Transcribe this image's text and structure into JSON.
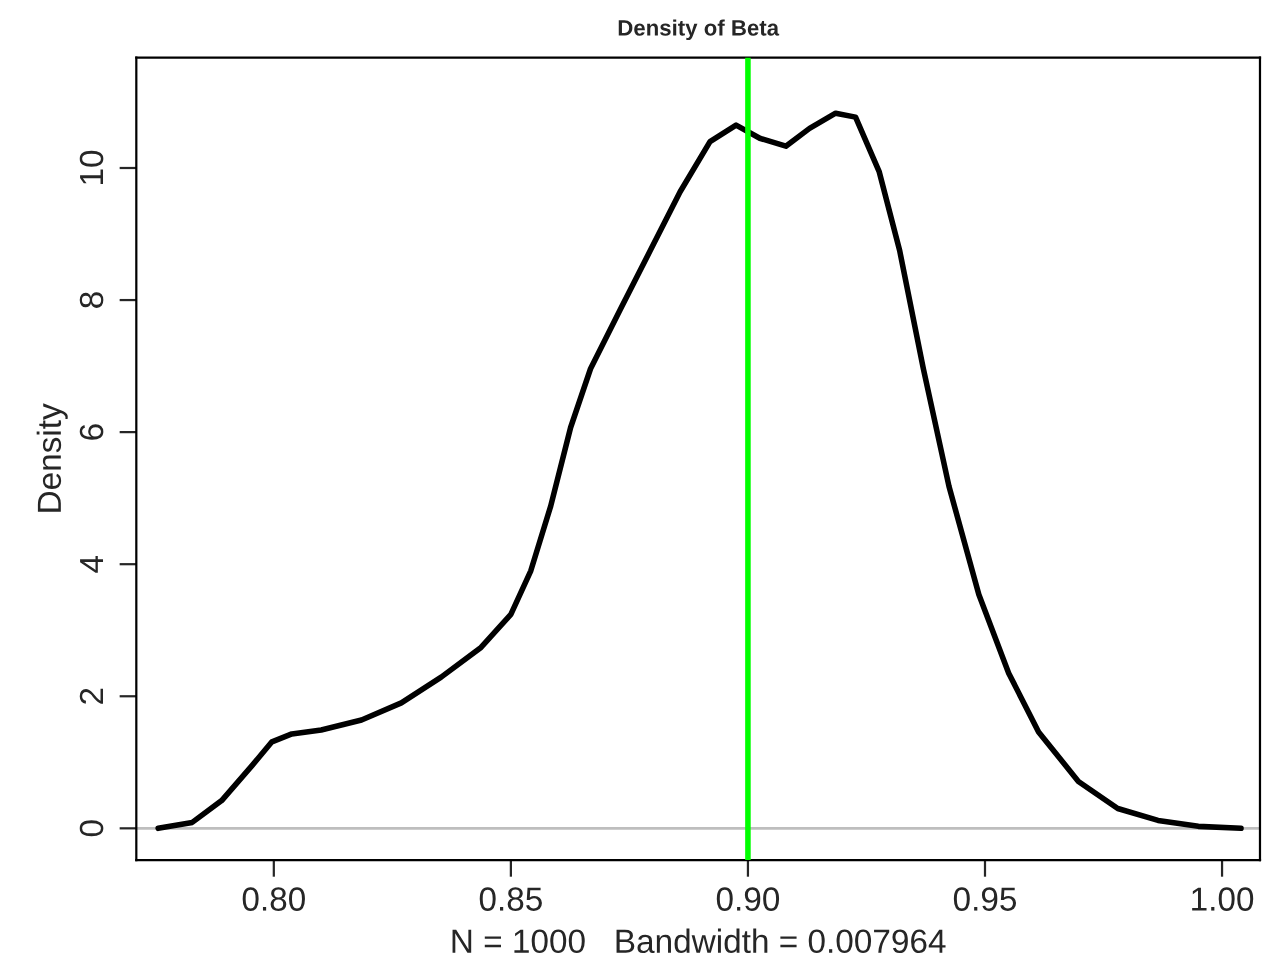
{
  "chart_data": {
    "type": "line",
    "title": "Density of Beta",
    "xlabel": "N = 1000   Bandwidth = 0.007964",
    "ylabel": "Density",
    "x": [
      0.7756,
      0.7828,
      0.789,
      0.7954,
      0.7996,
      0.8038,
      0.81,
      0.8185,
      0.8269,
      0.8353,
      0.8437,
      0.85,
      0.8542,
      0.8584,
      0.8626,
      0.8668,
      0.8731,
      0.8794,
      0.8857,
      0.892,
      0.8975,
      0.9025,
      0.908,
      0.913,
      0.9185,
      0.9227,
      0.9277,
      0.932,
      0.937,
      0.9424,
      0.9487,
      0.955,
      0.9613,
      0.9697,
      0.978,
      0.9865,
      0.995,
      1.004
    ],
    "series": [
      {
        "color": "#000000",
        "values": [
          0,
          0.09,
          0.42,
          0.95,
          1.31,
          1.43,
          1.49,
          1.64,
          1.9,
          2.29,
          2.74,
          3.24,
          3.9,
          4.88,
          6.07,
          6.96,
          7.86,
          8.75,
          9.64,
          10.4,
          10.65,
          10.45,
          10.33,
          10.6,
          10.83,
          10.77,
          9.94,
          8.75,
          6.96,
          5.18,
          3.54,
          2.35,
          1.46,
          0.71,
          0.3,
          0.12,
          0.03,
          0
        ]
      }
    ],
    "xlim": [
      0.771,
      1.008
    ],
    "ylim": [
      -0.48,
      11.67
    ],
    "xticks": [
      {
        "value": 0.8,
        "label": "0.80"
      },
      {
        "value": 0.85,
        "label": "0.85"
      },
      {
        "value": 0.9,
        "label": "0.90"
      },
      {
        "value": 0.95,
        "label": "0.95"
      },
      {
        "value": 1.0,
        "label": "1.00"
      }
    ],
    "yticks": [
      0,
      2,
      4,
      6,
      8,
      10
    ],
    "ref_lines": [
      {
        "axis": "y",
        "value": 0,
        "color": "#bebebe"
      },
      {
        "axis": "x",
        "value": 0.9,
        "color": "#00ff00"
      }
    ],
    "grid": false,
    "legend": false,
    "marker": "none",
    "line_style": "solid"
  }
}
